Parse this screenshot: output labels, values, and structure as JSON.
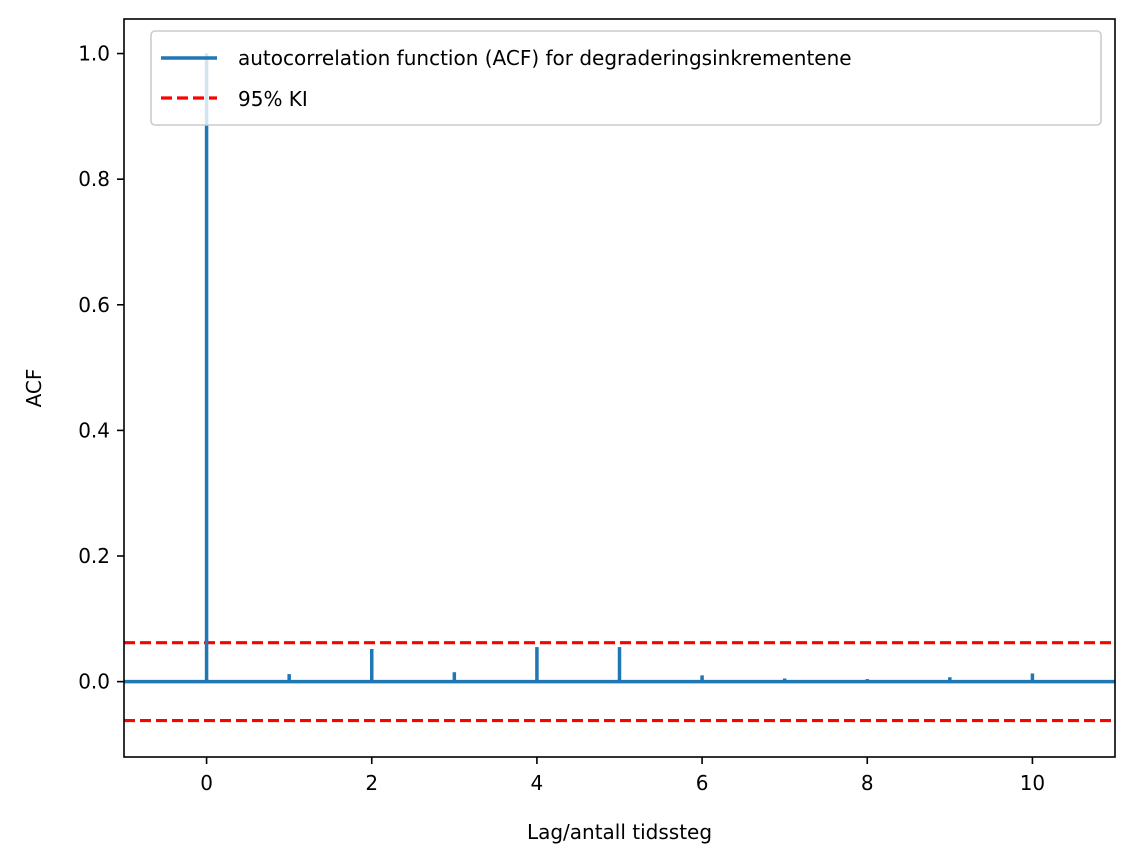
{
  "chart_data": {
    "type": "stem",
    "title": "",
    "xlabel": "Lag/antall tidssteg",
    "ylabel": "ACF",
    "xlim": [
      -1,
      11
    ],
    "ylim": [
      -0.12,
      1.055
    ],
    "xticks": [
      0,
      2,
      4,
      6,
      8,
      10
    ],
    "yticks": [
      0.0,
      0.2,
      0.4,
      0.6,
      0.8,
      1.0
    ],
    "xtick_labels": [
      "0",
      "2",
      "4",
      "6",
      "8",
      "10"
    ],
    "ytick_labels": [
      "0.0",
      "0.2",
      "0.4",
      "0.6",
      "0.8",
      "1.0"
    ],
    "series": [
      {
        "name": "autocorrelation function (ACF) for degraderingsinkrementene",
        "color": "#1f77b4",
        "style": "stem",
        "x": [
          0,
          1,
          2,
          3,
          4,
          5,
          6,
          7,
          8,
          9,
          10
        ],
        "values": [
          1.0,
          0.012,
          0.052,
          0.015,
          0.055,
          0.055,
          0.01,
          0.005,
          0.004,
          0.007,
          0.013
        ]
      }
    ],
    "confidence_interval": {
      "name": "95% KI",
      "color": "#ff0000",
      "style": "dashed",
      "upper": 0.062,
      "lower": -0.062
    },
    "baseline": 0,
    "legend": "top-right",
    "grid": false
  }
}
